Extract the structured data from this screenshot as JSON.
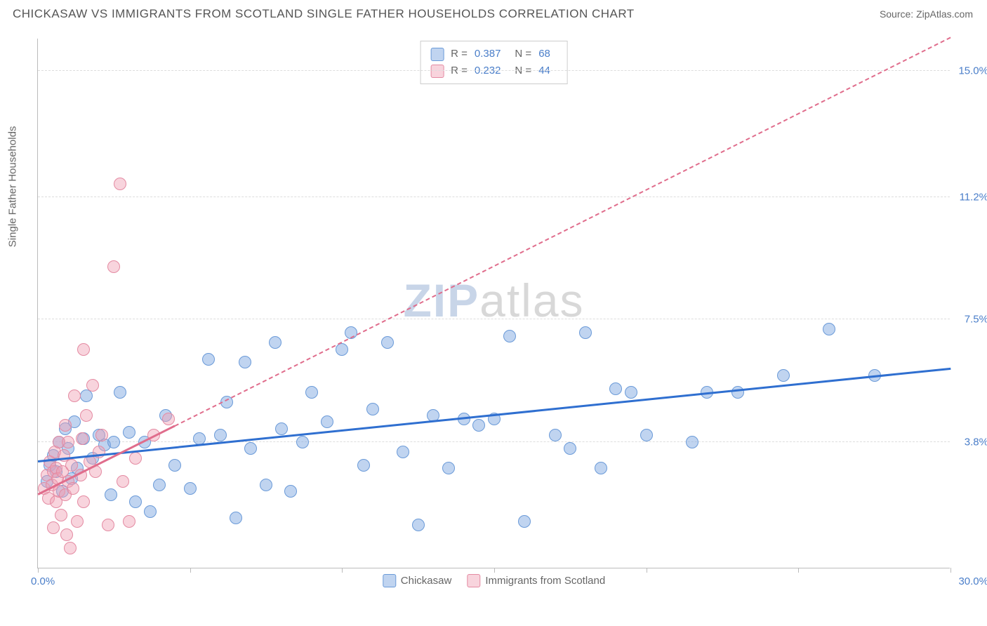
{
  "header": {
    "title": "CHICKASAW VS IMMIGRANTS FROM SCOTLAND SINGLE FATHER HOUSEHOLDS CORRELATION CHART",
    "source": "Source: ZipAtlas.com"
  },
  "watermark": {
    "part1": "ZIP",
    "part2": "atlas"
  },
  "chart": {
    "type": "scatter",
    "ylabel": "Single Father Households",
    "xlim": [
      0,
      30
    ],
    "ylim": [
      0,
      16
    ],
    "xmin_label": "0.0%",
    "xmax_label": "30.0%",
    "background_color": "#ffffff",
    "grid_color": "#dddddd",
    "axis_color": "#bbbbbb",
    "yleft_ticks": [
      3.8,
      7.5,
      11.2,
      15.0
    ],
    "ytick_labels": [
      "3.8%",
      "7.5%",
      "11.2%",
      "15.0%"
    ],
    "xticks": [
      0,
      5,
      10,
      15,
      20,
      25,
      30
    ],
    "marker_radius": 9,
    "series": [
      {
        "name": "Chickasaw",
        "fill": "rgba(130,170,225,0.5)",
        "stroke": "#6a9ad8",
        "trend_color": "#2f6fd0",
        "trend_solid_end_x": 30,
        "trend_dash_x0": null,
        "trend": {
          "x0": 0,
          "y0": 3.2,
          "x1": 30,
          "y1": 6.0
        },
        "r": "0.387",
        "n": "68",
        "points": [
          [
            0.3,
            2.6
          ],
          [
            0.4,
            3.1
          ],
          [
            0.5,
            3.4
          ],
          [
            0.6,
            2.9
          ],
          [
            0.7,
            3.8
          ],
          [
            0.8,
            2.3
          ],
          [
            0.9,
            4.2
          ],
          [
            1.0,
            3.6
          ],
          [
            1.1,
            2.7
          ],
          [
            1.2,
            4.4
          ],
          [
            1.3,
            3.0
          ],
          [
            1.5,
            3.9
          ],
          [
            1.6,
            5.2
          ],
          [
            1.8,
            3.3
          ],
          [
            2.0,
            4.0
          ],
          [
            2.2,
            3.7
          ],
          [
            2.4,
            2.2
          ],
          [
            2.5,
            3.8
          ],
          [
            2.7,
            5.3
          ],
          [
            3.0,
            4.1
          ],
          [
            3.2,
            2.0
          ],
          [
            3.5,
            3.8
          ],
          [
            3.7,
            1.7
          ],
          [
            4.0,
            2.5
          ],
          [
            4.2,
            4.6
          ],
          [
            4.5,
            3.1
          ],
          [
            5.0,
            2.4
          ],
          [
            5.3,
            3.9
          ],
          [
            5.6,
            6.3
          ],
          [
            6.0,
            4.0
          ],
          [
            6.2,
            5.0
          ],
          [
            6.5,
            1.5
          ],
          [
            6.8,
            6.2
          ],
          [
            7.0,
            3.6
          ],
          [
            7.5,
            2.5
          ],
          [
            7.8,
            6.8
          ],
          [
            8.0,
            4.2
          ],
          [
            8.3,
            2.3
          ],
          [
            8.7,
            3.8
          ],
          [
            9.0,
            5.3
          ],
          [
            9.5,
            4.4
          ],
          [
            10.0,
            6.6
          ],
          [
            10.3,
            7.1
          ],
          [
            10.7,
            3.1
          ],
          [
            11.0,
            4.8
          ],
          [
            11.5,
            6.8
          ],
          [
            12.0,
            3.5
          ],
          [
            12.5,
            1.3
          ],
          [
            13.0,
            4.6
          ],
          [
            13.5,
            3.0
          ],
          [
            14.0,
            4.5
          ],
          [
            14.5,
            4.3
          ],
          [
            15.0,
            4.5
          ],
          [
            15.5,
            7.0
          ],
          [
            16.0,
            1.4
          ],
          [
            17.0,
            4.0
          ],
          [
            17.5,
            3.6
          ],
          [
            18.0,
            7.1
          ],
          [
            18.5,
            3.0
          ],
          [
            19.0,
            5.4
          ],
          [
            19.5,
            5.3
          ],
          [
            20.0,
            4.0
          ],
          [
            21.5,
            3.8
          ],
          [
            22.0,
            5.3
          ],
          [
            23.0,
            5.3
          ],
          [
            24.5,
            5.8
          ],
          [
            26.0,
            7.2
          ],
          [
            27.5,
            5.8
          ]
        ]
      },
      {
        "name": "Immigrants from Scotland",
        "fill": "rgba(240,160,180,0.45)",
        "stroke": "#e48aa2",
        "trend_color": "#e06d8c",
        "trend_solid_end_x": 4.5,
        "trend_dash_x0": 4.5,
        "trend": {
          "x0": 0,
          "y0": 2.2,
          "x1": 30,
          "y1": 16.0
        },
        "r": "0.232",
        "n": "44",
        "points": [
          [
            0.2,
            2.4
          ],
          [
            0.3,
            2.8
          ],
          [
            0.35,
            2.1
          ],
          [
            0.4,
            3.2
          ],
          [
            0.45,
            2.5
          ],
          [
            0.5,
            2.9
          ],
          [
            0.5,
            1.2
          ],
          [
            0.55,
            3.5
          ],
          [
            0.6,
            2.0
          ],
          [
            0.6,
            3.0
          ],
          [
            0.65,
            2.7
          ],
          [
            0.7,
            2.3
          ],
          [
            0.7,
            3.8
          ],
          [
            0.75,
            1.6
          ],
          [
            0.8,
            2.9
          ],
          [
            0.85,
            3.4
          ],
          [
            0.9,
            2.2
          ],
          [
            0.9,
            4.3
          ],
          [
            0.95,
            1.0
          ],
          [
            1.0,
            2.6
          ],
          [
            1.0,
            3.8
          ],
          [
            1.05,
            0.6
          ],
          [
            1.1,
            3.1
          ],
          [
            1.15,
            2.4
          ],
          [
            1.2,
            5.2
          ],
          [
            1.3,
            1.4
          ],
          [
            1.4,
            2.8
          ],
          [
            1.45,
            3.9
          ],
          [
            1.5,
            6.6
          ],
          [
            1.5,
            2.0
          ],
          [
            1.6,
            4.6
          ],
          [
            1.7,
            3.2
          ],
          [
            1.8,
            5.5
          ],
          [
            1.9,
            2.9
          ],
          [
            2.0,
            3.5
          ],
          [
            2.1,
            4.0
          ],
          [
            2.3,
            1.3
          ],
          [
            2.5,
            9.1
          ],
          [
            2.7,
            11.6
          ],
          [
            2.8,
            2.6
          ],
          [
            3.0,
            1.4
          ],
          [
            3.2,
            3.3
          ],
          [
            3.8,
            4.0
          ],
          [
            4.3,
            4.5
          ]
        ]
      }
    ]
  },
  "legend": {
    "series1_label": "Chickasaw",
    "series2_label": "Immigrants from Scotland",
    "r_label": "R =",
    "n_label": "N ="
  }
}
